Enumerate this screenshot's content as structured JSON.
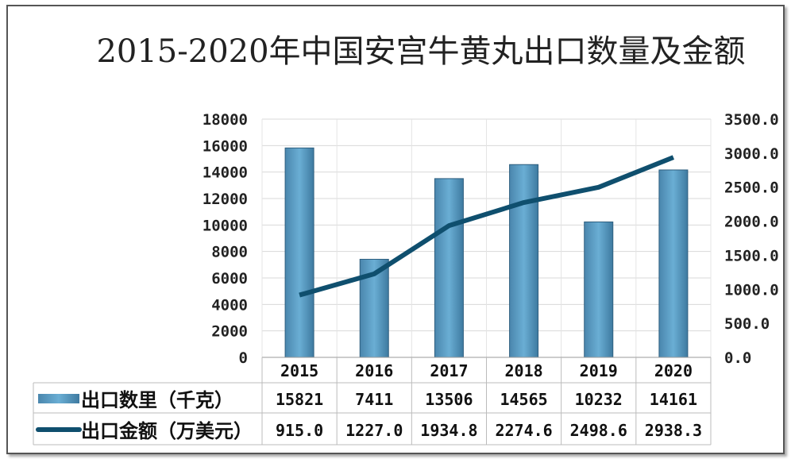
{
  "chart_data": {
    "type": "bar+line",
    "title": "2015-2020年中国安宫牛黄丸出口数量及金额",
    "categories": [
      "2015",
      "2016",
      "2017",
      "2018",
      "2019",
      "2020"
    ],
    "series": [
      {
        "name": "出口数里（千克）",
        "type": "bar",
        "axis": "left",
        "values": [
          15821,
          7411,
          13506,
          14565,
          10232,
          14161
        ],
        "value_labels": [
          "15821",
          "7411",
          "13506",
          "14565",
          "10232",
          "14161"
        ],
        "color": "#5b9dc4"
      },
      {
        "name": "出口金额（万美元）",
        "type": "line",
        "axis": "right",
        "values": [
          915.0,
          1227.0,
          1934.8,
          2274.6,
          2498.6,
          2938.3
        ],
        "value_labels": [
          "915.0",
          "1227.0",
          "1934.8",
          "2274.6",
          "2498.6",
          "2938.3"
        ],
        "color": "#0f4f6e"
      }
    ],
    "left_axis": {
      "ylim": [
        0,
        18000
      ],
      "ticks": [
        "0",
        "2000",
        "4000",
        "6000",
        "8000",
        "10000",
        "12000",
        "14000",
        "16000",
        "18000"
      ]
    },
    "right_axis": {
      "ylim": [
        0,
        3500
      ],
      "ticks": [
        "0.0",
        "500.0",
        "1000.0",
        "1500.0",
        "2000.0",
        "2500.0",
        "3000.0",
        "3500.0"
      ]
    },
    "grid": true,
    "legend": "data-table"
  }
}
